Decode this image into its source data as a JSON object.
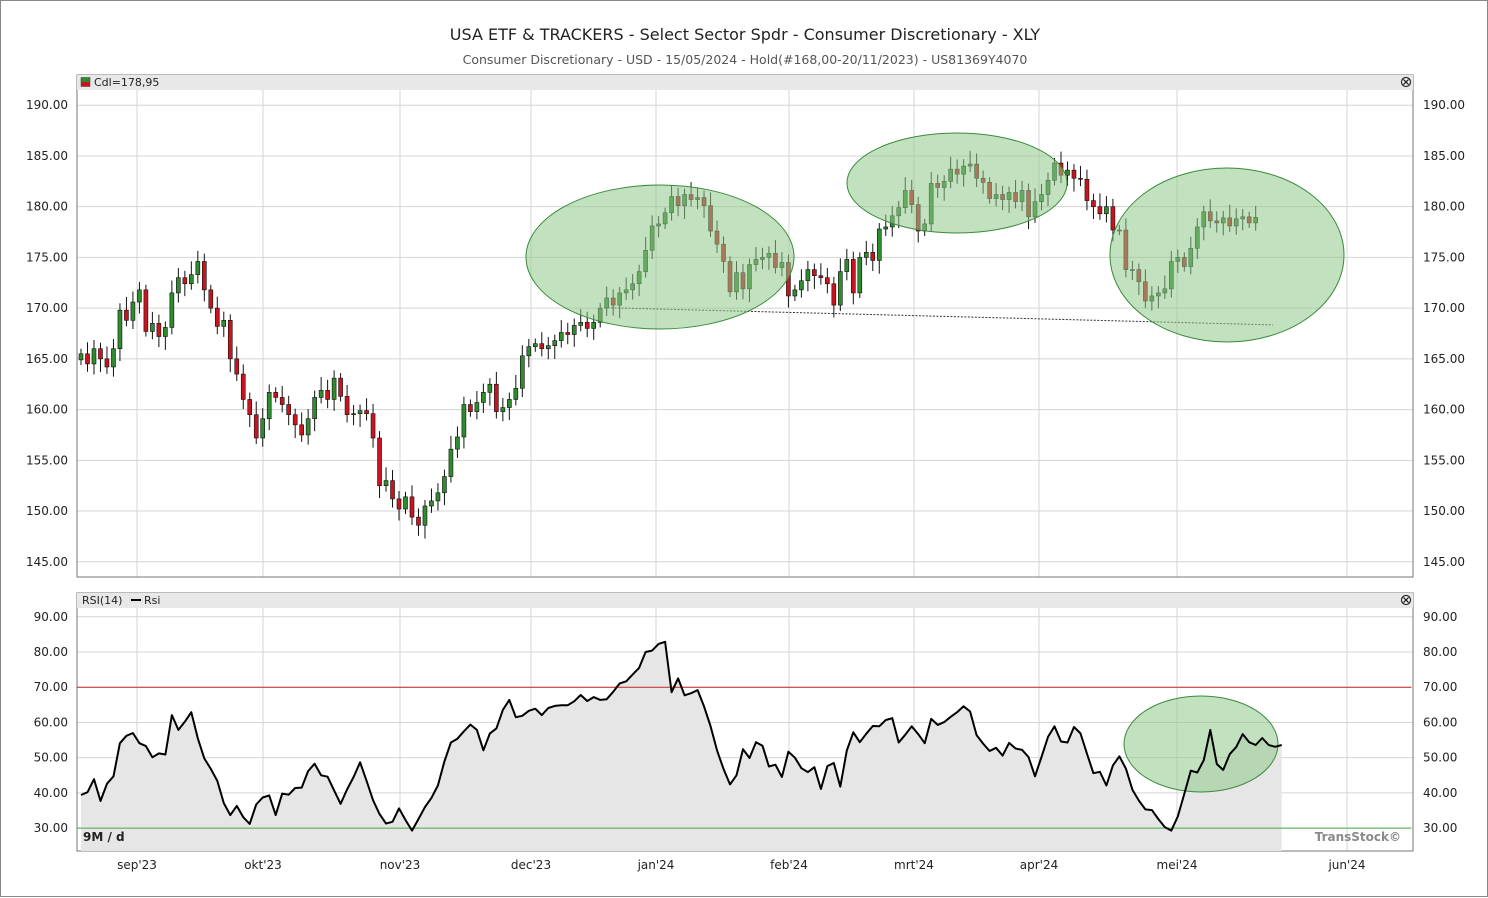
{
  "title": "USA ETF & TRACKERS - Select Sector Spdr - Consumer Discretionary - XLY",
  "subtitle": "Consumer  Discretionary  -  USD  -  15/05/2024  -  Hold(#168,00-20/11/2023)  -  US81369Y4070",
  "price_panel": {
    "legend": "Cdl=178,95"
  },
  "rsi_panel": {
    "legend_name": "RSI(14)",
    "legend_series": "Rsi",
    "period_label": "9M / d",
    "watermark": "TransStock©"
  },
  "colors": {
    "up": "#2e8b2e",
    "down": "#c8141e",
    "ellipse_fill": "#8fc98a",
    "ellipse_stroke": "#3a8a3a",
    "overbought": "#cc2222",
    "oversold": "#44aa44"
  },
  "chart_data": [
    {
      "type": "candlestick",
      "ylim": [
        143.5,
        191.5
      ],
      "yticks": [
        "145.00",
        "150.00",
        "155.00",
        "160.00",
        "165.00",
        "170.00",
        "175.00",
        "180.00",
        "185.00",
        "190.00"
      ],
      "xticks": [
        "sep'23",
        "okt'23",
        "nov'23",
        "dec'23",
        "jan'24",
        "feb'24",
        "mrt'24",
        "apr'24",
        "mei'24",
        "jun'24"
      ],
      "last_close": 178.95,
      "closes": [
        165.5,
        164.5,
        166.0,
        165.0,
        164.2,
        166.0,
        169.8,
        168.8,
        170.6,
        171.8,
        167.7,
        168.5,
        167.2,
        168.1,
        171.5,
        173.0,
        172.4,
        173.3,
        174.6,
        171.8,
        170.0,
        168.2,
        168.8,
        165.0,
        163.5,
        161.0,
        159.5,
        157.2,
        159.1,
        161.7,
        161.2,
        160.5,
        159.5,
        158.5,
        157.5,
        159.1,
        161.2,
        161.9,
        161.0,
        163.1,
        161.3,
        159.5,
        159.6,
        159.9,
        159.6,
        157.2,
        152.5,
        153.0,
        151.2,
        150.2,
        151.4,
        149.4,
        148.6,
        150.5,
        151.0,
        151.8,
        153.4,
        156.1,
        157.3,
        160.5,
        159.8,
        160.7,
        161.7,
        162.5,
        159.8,
        160.2,
        161.0,
        162.1,
        165.3,
        166.2,
        166.5,
        166.0,
        166.3,
        166.8,
        167.6,
        167.4,
        168.3,
        168.6,
        168.0,
        168.6,
        170.0,
        171.0,
        170.3,
        171.5,
        171.8,
        172.4,
        173.6,
        175.7,
        178.1,
        178.3,
        179.4,
        181.0,
        180.1,
        181.2,
        180.7,
        180.9,
        180.1,
        177.6,
        176.3,
        174.6,
        171.6,
        173.5,
        171.9,
        174.3,
        174.8,
        175.0,
        175.4,
        174.0,
        174.5,
        171.2,
        171.8,
        172.7,
        173.8,
        173.2,
        173.0,
        172.4,
        170.3,
        173.6,
        174.8,
        171.5,
        175.0,
        175.5,
        174.7,
        177.8,
        178.0,
        179.1,
        179.9,
        181.6,
        180.2,
        177.6,
        178.3,
        182.3,
        181.9,
        182.5,
        183.7,
        183.2,
        184.0,
        184.2,
        182.8,
        182.4,
        180.8,
        181.2,
        180.7,
        181.4,
        180.5,
        181.6,
        179.0,
        180.5,
        181.2,
        182.6,
        184.3,
        183.1,
        183.6,
        182.8,
        182.7,
        180.6,
        180.0,
        179.3,
        180.0,
        177.7,
        177.7,
        173.8,
        173.8,
        172.6,
        170.7,
        171.2,
        171.5,
        171.9,
        174.6,
        175.0,
        174.1,
        175.9,
        178.0,
        179.5,
        178.6,
        178.4,
        178.9,
        178.1,
        178.8,
        179.0,
        178.4,
        178.95
      ],
      "annotations": {
        "dashed_trendline": true,
        "highlight_ellipses": 3
      }
    },
    {
      "type": "line",
      "name": "Rsi",
      "ylim": [
        23.5,
        92.5
      ],
      "yticks": [
        "30.00",
        "40.00",
        "50.00",
        "60.00",
        "70.00",
        "80.00",
        "90.00"
      ],
      "levels": [
        70,
        30
      ],
      "values": [
        39.4,
        40.2,
        43.9,
        37.7,
        42.6,
        44.7,
        54.1,
        56.2,
        57.0,
        54.1,
        53.3,
        50.1,
        51.2,
        50.9,
        62.1,
        57.9,
        60.2,
        62.9,
        55.5,
        49.8,
        46.8,
        43.4,
        37.1,
        33.7,
        36.3,
        33.1,
        31.2,
        36.7,
        38.7,
        39.3,
        33.7,
        39.8,
        39.5,
        41.4,
        41.5,
        46.2,
        48.3,
        45.0,
        44.6,
        40.7,
        36.9,
        41.0,
        44.5,
        48.7,
        43.4,
        37.9,
        34.0,
        31.3,
        31.8,
        35.6,
        32.3,
        29.3,
        32.6,
        36.0,
        38.6,
        42.1,
        48.9,
        54.3,
        55.4,
        57.5,
        59.4,
        57.9,
        52.1,
        56.9,
        58.3,
        63.6,
        66.4,
        61.5,
        61.9,
        63.3,
        63.9,
        62.1,
        64.1,
        64.7,
        64.9,
        64.9,
        66.0,
        67.8,
        66.1,
        67.2,
        66.4,
        66.6,
        68.7,
        71.1,
        71.7,
        73.6,
        75.5,
        80.0,
        80.4,
        82.3,
        82.9,
        68.6,
        72.5,
        67.7,
        68.3,
        69.2,
        64.6,
        59.0,
        52.1,
        46.8,
        42.4,
        45.0,
        52.4,
        49.9,
        54.4,
        53.4,
        47.5,
        48.0,
        44.5,
        51.7,
        50.0,
        47.0,
        45.9,
        47.3,
        41.1,
        47.6,
        48.5,
        41.8,
        52.0,
        57.2,
        54.4,
        56.8,
        59.0,
        58.9,
        60.7,
        61.2,
        54.3,
        56.5,
        58.9,
        56.7,
        54.1,
        61.0,
        59.3,
        60.1,
        61.6,
        62.9,
        64.6,
        63.1,
        56.4,
        54.0,
        51.9,
        52.8,
        50.6,
        54.2,
        52.6,
        52.2,
        50.2,
        44.7,
        50.2,
        55.9,
        58.9,
        54.6,
        54.3,
        58.7,
        56.9,
        51.1,
        45.6,
        46.0,
        42.1,
        47.8,
        50.4,
        46.9,
        40.9,
        37.8,
        35.3,
        35.1,
        32.6,
        30.3,
        29.3,
        33.3,
        39.7,
        46.3,
        45.8,
        49.3,
        57.9,
        48.2,
        46.5,
        51.0,
        53.0,
        56.7,
        54.4,
        53.6,
        55.6,
        53.6,
        53.1,
        53.6
      ]
    }
  ]
}
